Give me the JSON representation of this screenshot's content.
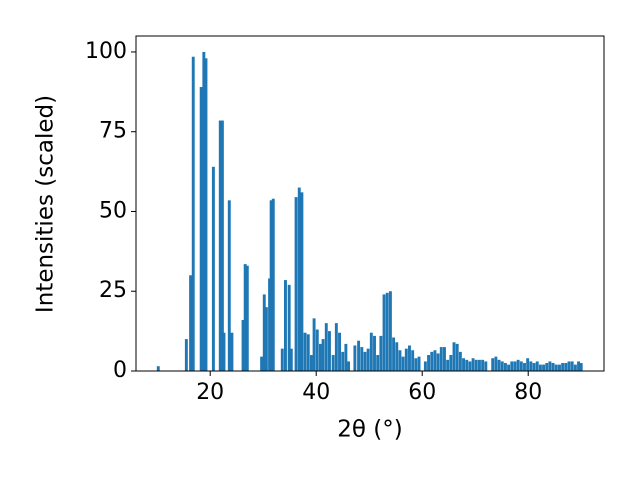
{
  "chart_data": {
    "type": "bar",
    "x_label": "2θ (°)",
    "y_label": "Intensities (scaled)",
    "color": "#1f77b4",
    "xlim": [
      6,
      94.3
    ],
    "ylim": [
      0,
      105
    ],
    "xticks": [
      20,
      40,
      60,
      80
    ],
    "yticks": [
      0,
      25,
      50,
      75,
      100
    ],
    "grid": false,
    "x": [
      10.2,
      15.5,
      16.3,
      16.8,
      18.3,
      18.8,
      19.2,
      20.6,
      21.9,
      22.3,
      22.6,
      23.6,
      24.1,
      26.2,
      26.6,
      27.0,
      29.7,
      30.2,
      30.6,
      31.2,
      31.5,
      31.9,
      33.6,
      34.2,
      34.9,
      35.3,
      36.2,
      36.8,
      37.3,
      37.9,
      38.5,
      39.1,
      39.6,
      40.2,
      40.8,
      41.3,
      41.9,
      42.5,
      43.2,
      43.8,
      44.4,
      45.0,
      45.6,
      46.1,
      47.3,
      48.0,
      48.6,
      49.2,
      49.8,
      50.4,
      51.0,
      51.6,
      52.2,
      52.8,
      53.4,
      54.0,
      54.6,
      55.2,
      55.8,
      56.4,
      57.0,
      57.6,
      58.2,
      58.8,
      59.4,
      60.6,
      61.2,
      61.8,
      62.4,
      63.0,
      63.6,
      64.2,
      64.8,
      65.4,
      66.0,
      66.6,
      67.2,
      67.8,
      68.4,
      69.0,
      69.6,
      70.2,
      70.8,
      71.4,
      72.0,
      73.3,
      73.9,
      74.5,
      75.1,
      75.7,
      76.3,
      76.9,
      77.5,
      78.1,
      78.7,
      79.3,
      79.9,
      80.5,
      81.1,
      81.7,
      82.3,
      82.9,
      83.5,
      84.1,
      84.7,
      85.3,
      85.9,
      86.5,
      87.1,
      87.7,
      88.3,
      88.9,
      89.5,
      90.0
    ],
    "values": [
      1.5,
      10,
      30,
      98.5,
      89,
      100,
      98,
      64,
      78.5,
      78.5,
      12,
      53.5,
      12,
      16,
      33.5,
      33,
      4.5,
      24,
      20,
      29,
      53.5,
      54,
      7,
      28.5,
      27,
      7,
      54.5,
      57.5,
      56,
      12,
      11.5,
      5,
      16.5,
      13,
      8.5,
      10,
      15,
      12.5,
      5,
      15,
      12,
      6,
      8.5,
      3,
      8,
      9.5,
      7.5,
      6,
      7,
      12,
      11,
      5,
      11,
      24,
      24.5,
      25,
      10.5,
      9,
      6.5,
      4.5,
      7,
      8,
      6.5,
      4,
      4.5,
      3,
      5,
      6,
      6.5,
      5.5,
      7.5,
      7.5,
      3.5,
      5,
      9,
      8.5,
      6,
      4,
      3.5,
      3,
      4,
      3.5,
      3.5,
      3.5,
      3,
      4,
      4.5,
      3.5,
      3,
      2.5,
      2,
      3,
      3,
      3.5,
      3,
      2.5,
      4,
      3,
      2.5,
      3,
      2,
      2,
      2.5,
      3,
      2.5,
      2,
      2,
      2.5,
      2.5,
      3,
      3,
      2,
      3,
      2.5
    ]
  }
}
